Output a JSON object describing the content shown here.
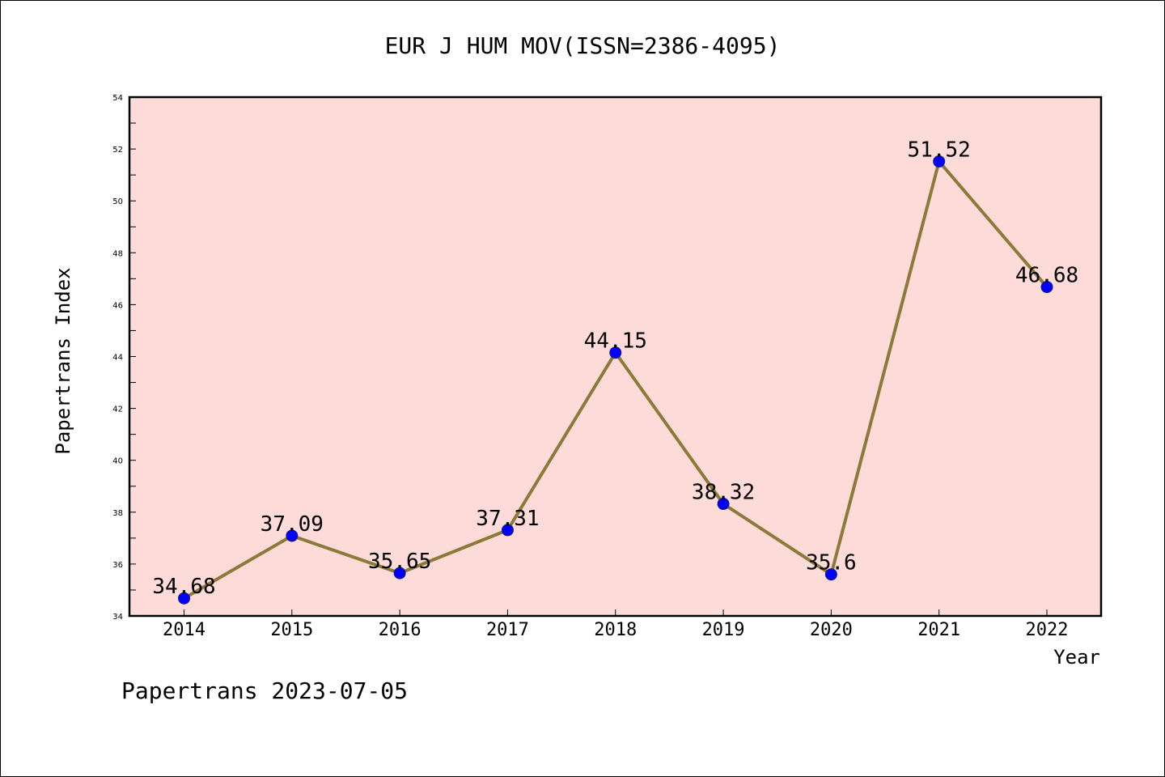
{
  "chart_data": {
    "type": "line",
    "title": "EUR J HUM MOV(ISSN=2386-4095)",
    "xlabel": "Year",
    "ylabel": "Papertrans Index",
    "ylim": [
      34,
      54
    ],
    "yticks": [
      34,
      36,
      38,
      40,
      42,
      44,
      46,
      48,
      50,
      52,
      54
    ],
    "categories": [
      "2014",
      "2015",
      "2016",
      "2017",
      "2018",
      "2019",
      "2020",
      "2021",
      "2022"
    ],
    "series": [
      {
        "values": [
          34.68,
          37.09,
          35.65,
          37.31,
          44.15,
          38.32,
          35.6,
          51.52,
          46.68
        ],
        "labels": [
          "34.68",
          "37.09",
          "35.65",
          "37.31",
          "44.15",
          "38.32",
          "35.6",
          "51.52",
          "46.68"
        ],
        "line_color": "#8b7a3a",
        "marker_color": "#0000ff"
      }
    ],
    "background_color": "#fddbd8",
    "grid": false,
    "footer": "Papertrans 2023-07-05"
  }
}
